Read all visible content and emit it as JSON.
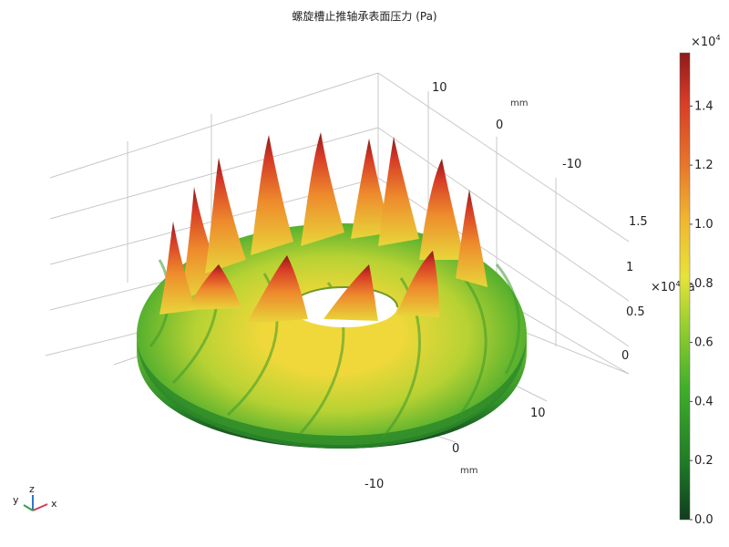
{
  "title": "螺旋槽止推轴承表面压力 (Pa)",
  "colorbar": {
    "multiplier": "×10",
    "multiplier_exponent": "4",
    "ticks": [
      "0.0",
      "0.2",
      "0.4",
      "0.6",
      "0.8",
      "1.0",
      "1.2",
      "1.4"
    ],
    "range": [
      0,
      1.58
    ],
    "colors": [
      "#0f3d1e",
      "#1f7a26",
      "#3fae2a",
      "#8ccb2f",
      "#e6e33a",
      "#f0b830",
      "#e8762a",
      "#d63a26",
      "#8e1a1a"
    ]
  },
  "axes": {
    "x_ticks": [
      "10",
      "0",
      "-10"
    ],
    "x_unit": "mm",
    "y_ticks": [
      "10",
      "0",
      "-10"
    ],
    "y_unit": "mm",
    "z_ticks": [
      "1.5",
      "1",
      "0.5",
      "0"
    ],
    "z_multiplier": "×10",
    "z_multiplier_exponent": "4",
    "z_unit": "Pa"
  },
  "triad": {
    "x": "x",
    "y": "y",
    "z": "z"
  },
  "chart_data": {
    "type": "surface3d",
    "title": "螺旋槽止推轴承表面压力 (Pa)",
    "description_fields": {
      "x_unit": "mm",
      "y_unit": "mm",
      "z_unit": "Pa",
      "z_scale": 10000
    },
    "x_range": [
      -15,
      15
    ],
    "y_range": [
      -15,
      15
    ],
    "z_range": [
      0,
      15800
    ],
    "inner_radius_mm": 5,
    "outer_radius_mm": 15,
    "groove_count": 12,
    "peak_pressure_pa": 15800,
    "color_range_pa": [
      0,
      15800
    ],
    "colormap": "green-yellow-red"
  }
}
